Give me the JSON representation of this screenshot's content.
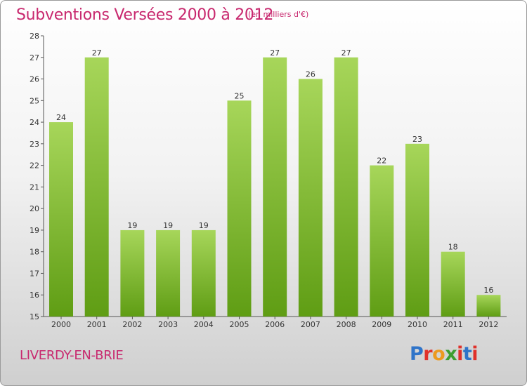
{
  "title": "Subventions Versées 2000 à 2012",
  "subtitle": "(en milliers d'€)",
  "commune": "LIVERDY-EN-BRIE",
  "logo": {
    "letters": [
      "P",
      "r",
      "o",
      "x",
      "i",
      "t",
      "i"
    ],
    "colors": [
      "#2f74c9",
      "#e0312b",
      "#ec9a1f",
      "#3c9e2f",
      "#e0312b",
      "#2f74c9",
      "#e0312b"
    ]
  },
  "colors": {
    "bar_top": "#a7d65a",
    "bar_bottom": "#5f9d14",
    "title": "#c8286e"
  },
  "chart_data": {
    "type": "bar",
    "categories": [
      "2000",
      "2001",
      "2002",
      "2003",
      "2004",
      "2005",
      "2006",
      "2007",
      "2008",
      "2009",
      "2010",
      "2011",
      "2012"
    ],
    "values": [
      24,
      27,
      19,
      19,
      19,
      25,
      27,
      26,
      27,
      22,
      23,
      18,
      16
    ],
    "ylim": [
      15,
      28
    ],
    "yticks": [
      15,
      16,
      17,
      18,
      19,
      20,
      21,
      22,
      23,
      24,
      25,
      26,
      27,
      28
    ],
    "grid": false
  }
}
